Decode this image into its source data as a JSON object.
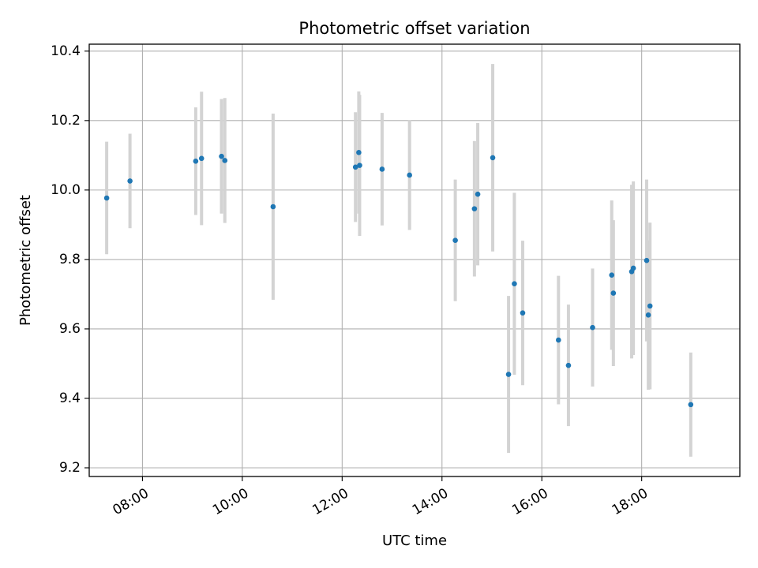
{
  "chart_data": {
    "type": "scatter",
    "title": "Photometric offset variation",
    "xlabel": "UTC time",
    "ylabel": "Photometric offset",
    "x_ticks": [
      "08:00",
      "10:00",
      "12:00",
      "14:00",
      "16:00",
      "18:00"
    ],
    "y_ticks": [
      "9.2",
      "9.4",
      "9.6",
      "9.8",
      "10.0",
      "10.2",
      "10.4"
    ],
    "xlim": [
      "06:56",
      "19:58"
    ],
    "ylim": [
      9.175,
      10.42
    ],
    "grid": true,
    "error_bar_color": "#d3d3d3",
    "point_color": "#1f77b4",
    "points": [
      {
        "time": "07:17",
        "y": 9.977,
        "err": 0.162
      },
      {
        "time": "07:45",
        "y": 10.026,
        "err": 0.136
      },
      {
        "time": "09:04",
        "y": 10.083,
        "err": 0.155
      },
      {
        "time": "09:11",
        "y": 10.091,
        "err": 0.192
      },
      {
        "time": "09:35",
        "y": 10.097,
        "err": 0.165
      },
      {
        "time": "09:39",
        "y": 10.085,
        "err": 0.18
      },
      {
        "time": "10:37",
        "y": 9.952,
        "err": 0.268
      },
      {
        "time": "12:16",
        "y": 10.066,
        "err": 0.158
      },
      {
        "time": "12:20",
        "y": 10.108,
        "err": 0.176
      },
      {
        "time": "12:21",
        "y": 10.071,
        "err": 0.203
      },
      {
        "time": "12:48",
        "y": 10.06,
        "err": 0.162
      },
      {
        "time": "13:21",
        "y": 10.043,
        "err": 0.158
      },
      {
        "time": "14:16",
        "y": 9.855,
        "err": 0.175
      },
      {
        "time": "14:39",
        "y": 9.946,
        "err": 0.195
      },
      {
        "time": "14:43",
        "y": 9.988,
        "err": 0.205
      },
      {
        "time": "15:01",
        "y": 10.093,
        "err": 0.27
      },
      {
        "time": "15:20",
        "y": 9.469,
        "err": 0.226
      },
      {
        "time": "15:27",
        "y": 9.73,
        "err": 0.262
      },
      {
        "time": "15:37",
        "y": 9.646,
        "err": 0.208
      },
      {
        "time": "16:20",
        "y": 9.568,
        "err": 0.185
      },
      {
        "time": "16:32",
        "y": 9.495,
        "err": 0.175
      },
      {
        "time": "17:01",
        "y": 9.604,
        "err": 0.17
      },
      {
        "time": "17:24",
        "y": 9.755,
        "err": 0.215
      },
      {
        "time": "17:26",
        "y": 9.703,
        "err": 0.21
      },
      {
        "time": "17:48",
        "y": 9.765,
        "err": 0.25
      },
      {
        "time": "17:50",
        "y": 9.775,
        "err": 0.25
      },
      {
        "time": "18:06",
        "y": 9.797,
        "err": 0.233
      },
      {
        "time": "18:08",
        "y": 9.64,
        "err": 0.215
      },
      {
        "time": "18:10",
        "y": 9.666,
        "err": 0.24
      },
      {
        "time": "18:59",
        "y": 9.382,
        "err": 0.15
      }
    ]
  }
}
